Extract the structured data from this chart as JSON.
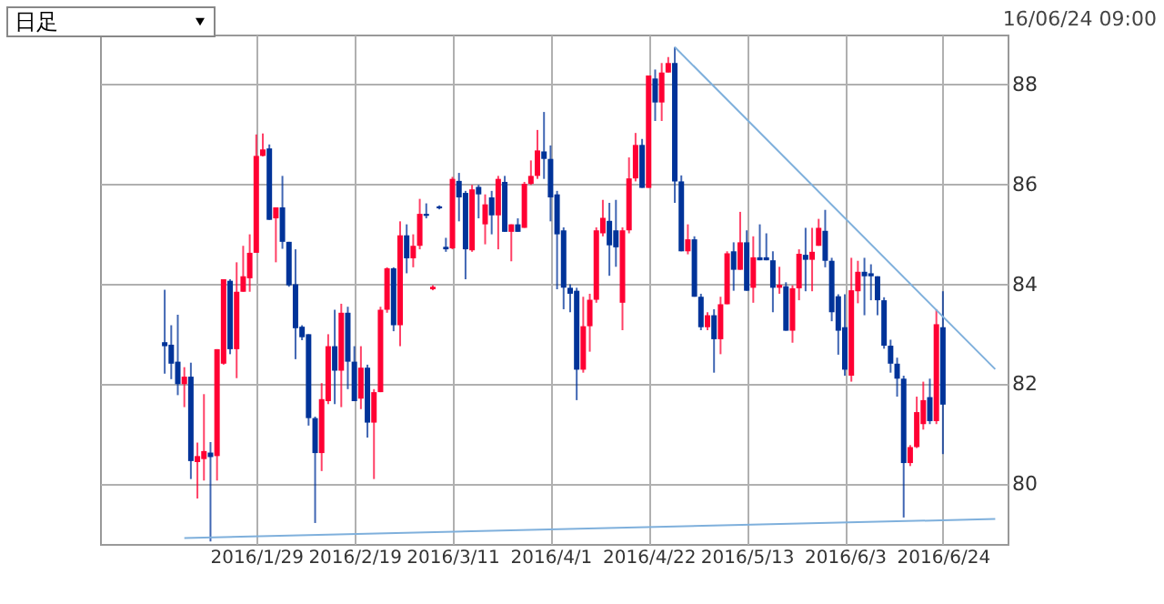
{
  "chart_data": {
    "type": "candlestick",
    "annotations": [
      "日足",
      "16/06/24 09:00"
    ],
    "categories": [
      null,
      null,
      null,
      null,
      null,
      null,
      null,
      null,
      null,
      null,
      null,
      null,
      null,
      null,
      null,
      null,
      null,
      null,
      null,
      null,
      null,
      null,
      "2016/1/29",
      null,
      null,
      null,
      null,
      null,
      null,
      null,
      null,
      null,
      null,
      null,
      null,
      null,
      null,
      "2016/2/19",
      null,
      null,
      null,
      null,
      null,
      null,
      null,
      null,
      null,
      null,
      null,
      null,
      null,
      null,
      "2016/3/11",
      null,
      null,
      null,
      null,
      null,
      null,
      null,
      null,
      null,
      null,
      null,
      null,
      null,
      null,
      "2016/4/1",
      null,
      null,
      null,
      null,
      null,
      null,
      null,
      null,
      null,
      null,
      null,
      null,
      null,
      null,
      "2016/4/22",
      null,
      null,
      null,
      null,
      null,
      null,
      null,
      null,
      null,
      null,
      null,
      null,
      null,
      null,
      "2016/5/13",
      null,
      null,
      null,
      null,
      null,
      null,
      null,
      null,
      null,
      null,
      null,
      null,
      null,
      null,
      "2016/6/3",
      null,
      null,
      null,
      null,
      null,
      null,
      null,
      null,
      null,
      null,
      null,
      null,
      null,
      null,
      "2016/6/24",
      null,
      null,
      null,
      null,
      null,
      null,
      null,
      null
    ],
    "ohlc": [
      null,
      null,
      null,
      null,
      null,
      null,
      null,
      null,
      [
        82.84,
        83.89,
        82.21,
        82.76
      ],
      [
        82.79,
        83.18,
        82.1,
        82.41
      ],
      [
        82.45,
        83.39,
        81.78,
        82.0
      ],
      [
        82.0,
        82.34,
        81.54,
        82.15
      ],
      [
        82.15,
        82.43,
        80.1,
        80.46
      ],
      [
        80.44,
        80.83,
        79.71,
        80.56
      ],
      [
        80.5,
        81.8,
        80.07,
        80.66
      ],
      [
        80.63,
        80.84,
        78.85,
        80.54
      ],
      [
        80.56,
        82.7,
        80.07,
        82.7
      ],
      [
        82.41,
        84.1,
        82.39,
        84.1
      ],
      [
        84.07,
        84.1,
        82.6,
        82.7
      ],
      [
        82.7,
        84.44,
        82.12,
        83.85
      ],
      [
        83.85,
        84.77,
        83.85,
        84.16
      ],
      [
        84.12,
        85.0,
        83.85,
        84.63
      ],
      [
        84.63,
        87.0,
        84.63,
        86.57
      ],
      [
        86.57,
        87.02,
        86.56,
        86.7
      ],
      [
        86.72,
        86.8,
        85.29,
        85.29
      ],
      [
        85.32,
        85.54,
        84.44,
        85.54
      ],
      [
        85.54,
        86.17,
        84.71,
        84.85
      ],
      [
        84.85,
        84.85,
        83.95,
        83.98
      ],
      [
        84.0,
        84.7,
        82.5,
        83.12
      ],
      [
        83.15,
        83.18,
        82.88,
        82.94
      ],
      [
        83.0,
        83.0,
        81.17,
        81.32
      ],
      [
        81.32,
        81.35,
        79.22,
        80.62
      ],
      [
        80.62,
        82.02,
        80.26,
        81.7
      ],
      [
        81.66,
        83.0,
        81.6,
        82.76
      ],
      [
        82.76,
        83.49,
        81.6,
        82.27
      ],
      [
        82.27,
        83.61,
        81.54,
        83.43
      ],
      [
        83.43,
        83.55,
        81.9,
        82.45
      ],
      [
        82.45,
        82.76,
        81.66,
        81.66
      ],
      [
        81.71,
        82.76,
        81.5,
        82.33
      ],
      [
        82.33,
        82.39,
        80.93,
        81.23
      ],
      [
        81.23,
        81.9,
        80.1,
        81.84
      ],
      [
        81.84,
        83.55,
        81.84,
        83.49
      ],
      [
        83.49,
        84.34,
        83.43,
        84.32
      ],
      [
        84.32,
        84.34,
        83.06,
        83.18
      ],
      [
        83.18,
        85.26,
        82.76,
        84.98
      ],
      [
        84.98,
        85.2,
        84.22,
        84.52
      ],
      [
        84.52,
        85.0,
        84.34,
        84.77
      ],
      [
        84.77,
        85.71,
        84.7,
        85.41
      ],
      [
        85.41,
        85.62,
        85.32,
        85.37
      ],
      [
        83.9,
        83.98,
        83.88,
        83.95
      ],
      [
        85.56,
        85.58,
        85.5,
        85.52
      ],
      [
        84.75,
        84.93,
        84.65,
        84.7
      ],
      [
        84.72,
        86.15,
        84.7,
        86.11
      ],
      [
        86.07,
        86.23,
        85.26,
        85.74
      ],
      [
        85.83,
        85.87,
        84.1,
        84.7
      ],
      [
        84.68,
        85.99,
        84.65,
        85.9
      ],
      [
        85.95,
        85.99,
        85.32,
        85.8
      ],
      [
        85.2,
        85.8,
        84.8,
        85.6
      ],
      [
        85.74,
        85.87,
        85.0,
        85.38
      ],
      [
        85.38,
        86.17,
        84.7,
        86.11
      ],
      [
        86.05,
        86.17,
        85.05,
        85.05
      ],
      [
        85.05,
        85.2,
        84.46,
        85.2
      ],
      [
        85.2,
        85.32,
        85.05,
        85.05
      ],
      [
        85.13,
        86.05,
        85.13,
        86.01
      ],
      [
        86.01,
        86.48,
        85.99,
        86.17
      ],
      [
        86.17,
        87.09,
        86.11,
        86.68
      ],
      [
        86.66,
        87.45,
        86.11,
        86.51
      ],
      [
        86.51,
        86.78,
        85.26,
        85.74
      ],
      [
        85.8,
        85.87,
        83.9,
        85.0
      ],
      [
        85.08,
        85.14,
        83.5,
        83.93
      ],
      [
        83.93,
        84.0,
        83.44,
        83.81
      ],
      [
        83.87,
        83.93,
        81.68,
        82.29
      ],
      [
        82.29,
        83.75,
        82.23,
        83.16
      ],
      [
        83.16,
        83.81,
        82.65,
        83.69
      ],
      [
        83.69,
        85.14,
        83.63,
        85.08
      ],
      [
        85.02,
        85.69,
        84.96,
        85.33
      ],
      [
        85.27,
        85.63,
        84.17,
        84.78
      ],
      [
        85.08,
        85.69,
        84.35,
        84.74
      ],
      [
        83.63,
        85.14,
        83.08,
        85.08
      ],
      [
        85.08,
        86.54,
        85.02,
        86.12
      ],
      [
        86.12,
        87.03,
        86.06,
        86.79
      ],
      [
        86.79,
        86.91,
        85.93,
        85.93
      ],
      [
        85.93,
        88.18,
        85.93,
        88.18
      ],
      [
        88.12,
        88.3,
        87.27,
        87.64
      ],
      [
        87.64,
        88.43,
        87.27,
        88.24
      ],
      [
        88.24,
        88.55,
        88.24,
        88.43
      ],
      [
        88.43,
        88.75,
        85.63,
        86.06
      ],
      [
        86.06,
        86.18,
        84.66,
        84.66
      ],
      [
        84.66,
        85.2,
        84.6,
        84.9
      ],
      [
        84.9,
        84.96,
        83.75,
        83.75
      ],
      [
        83.75,
        83.81,
        83.08,
        83.14
      ],
      [
        83.14,
        83.44,
        83.08,
        83.38
      ],
      [
        83.38,
        83.5,
        82.23,
        82.9
      ],
      [
        82.9,
        83.75,
        82.6,
        83.6
      ],
      [
        83.6,
        84.66,
        83.6,
        84.62
      ],
      [
        84.66,
        84.84,
        83.87,
        84.29
      ],
      [
        84.29,
        85.45,
        84.29,
        84.84
      ],
      [
        84.84,
        85.08,
        83.87,
        83.87
      ],
      [
        83.93,
        84.96,
        83.63,
        84.54
      ],
      [
        84.54,
        85.2,
        84.48,
        84.48
      ],
      [
        84.54,
        85.02,
        84.48,
        84.48
      ],
      [
        84.48,
        84.66,
        83.44,
        83.93
      ],
      [
        83.93,
        84.35,
        83.81,
        83.99
      ],
      [
        83.96,
        84.04,
        83.07,
        83.07
      ],
      [
        83.07,
        83.98,
        82.83,
        83.92
      ],
      [
        83.92,
        84.7,
        83.68,
        84.61
      ],
      [
        84.59,
        85.13,
        83.86,
        84.49
      ],
      [
        84.49,
        85.13,
        83.86,
        84.65
      ],
      [
        84.77,
        85.31,
        84.77,
        85.13
      ],
      [
        85.07,
        85.49,
        84.34,
        84.47
      ],
      [
        84.47,
        84.53,
        83.26,
        83.44
      ],
      [
        83.76,
        83.8,
        82.59,
        83.07
      ],
      [
        83.14,
        83.8,
        82.17,
        82.29
      ],
      [
        82.17,
        84.53,
        82.05,
        83.88
      ],
      [
        83.86,
        84.47,
        83.62,
        84.25
      ],
      [
        84.25,
        84.53,
        83.38,
        84.16
      ],
      [
        84.22,
        84.4,
        83.68,
        84.16
      ],
      [
        84.16,
        84.16,
        83.38,
        83.68
      ],
      [
        83.68,
        83.74,
        82.71,
        82.77
      ],
      [
        82.77,
        82.89,
        82.23,
        82.41
      ],
      [
        82.41,
        82.53,
        81.75,
        82.11
      ],
      [
        82.11,
        82.17,
        79.33,
        80.42
      ],
      [
        80.42,
        80.78,
        80.36,
        80.74
      ],
      [
        80.74,
        81.75,
        80.72,
        81.44
      ],
      [
        81.2,
        82.05,
        81.09,
        81.68
      ],
      [
        81.74,
        82.11,
        81.2,
        81.26
      ],
      [
        81.26,
        83.5,
        81.2,
        83.2
      ],
      [
        83.14,
        83.86,
        80.6,
        81.59
      ],
      null,
      null,
      null,
      null,
      null,
      null,
      null,
      null
    ],
    "colors": [
      null,
      null,
      null,
      null,
      null,
      null,
      null,
      null,
      "#003399",
      "#003399",
      "#003399",
      "#ff0033",
      "#003399",
      "#ff0033",
      "#ff0033",
      "#003399",
      "#ff0033",
      "#ff0033",
      "#003399",
      "#ff0033",
      "#ff0033",
      "#ff0033",
      "#ff0033",
      "#ff0033",
      "#003399",
      "#ff0033",
      "#003399",
      "#003399",
      "#003399",
      "#003399",
      "#003399",
      "#003399",
      "#ff0033",
      "#ff0033",
      "#003399",
      "#ff0033",
      "#003399",
      "#003399",
      "#ff0033",
      "#003399",
      "#ff0033",
      "#ff0033",
      "#ff0033",
      "#003399",
      "#ff0033",
      "#003399",
      "#ff0033",
      "#ff0033",
      "#003399",
      "#ff0033",
      "#003399",
      "#003399",
      "#ff0033",
      "#003399",
      "#003399",
      "#ff0033",
      "#003399",
      "#ff0033",
      "#003399",
      "#ff0033",
      "#003399",
      "#ff0033",
      "#003399",
      "#ff0033",
      "#ff0033",
      "#ff0033",
      "#003399",
      "#003399",
      "#003399",
      "#003399",
      "#003399",
      "#003399",
      "#ff0033",
      "#ff0033",
      "#ff0033",
      "#ff0033",
      "#003399",
      "#003399",
      "#ff0033",
      "#ff0033",
      "#ff0033",
      "#003399",
      "#ff0033",
      "#003399",
      "#ff0033",
      "#ff0033",
      "#003399",
      "#003399",
      "#ff0033",
      "#003399",
      "#003399",
      "#ff0033",
      "#003399",
      "#ff0033",
      "#ff0033",
      "#003399",
      "#ff0033",
      "#003399",
      "#ff0033",
      "#003399",
      "#003399",
      "#003399",
      "#ff0033",
      "#003399",
      "#ff0033",
      "#ff0033",
      "#003399",
      "#ff0033",
      "#ff0033",
      "#003399",
      "#003399",
      "#003399",
      "#003399",
      "#ff0033",
      "#ff0033",
      "#003399",
      "#003399",
      "#003399",
      "#003399",
      "#003399",
      "#003399",
      "#003399",
      "#ff0033",
      "#ff0033",
      "#ff0033",
      "#003399",
      "#ff0033",
      "#003399",
      null,
      null,
      null,
      null,
      null,
      null,
      null,
      null
    ],
    "series": [
      {
        "type": "line",
        "color": "#7fb0dc",
        "values": [
          null,
          null,
          null,
          null,
          null,
          null,
          null,
          null,
          null,
          null,
          null,
          78.92,
          null,
          null,
          null,
          null,
          null,
          null,
          null,
          null,
          null,
          null,
          null,
          null,
          null,
          null,
          null,
          null,
          null,
          null,
          null,
          null,
          null,
          null,
          null,
          null,
          null,
          null,
          null,
          null,
          null,
          null,
          null,
          null,
          null,
          null,
          null,
          null,
          null,
          null,
          null,
          null,
          null,
          null,
          null,
          null,
          null,
          null,
          null,
          null,
          null,
          null,
          null,
          null,
          null,
          null,
          null,
          null,
          null,
          null,
          null,
          null,
          null,
          null,
          null,
          null,
          null,
          null,
          null,
          null,
          null,
          null,
          null,
          null,
          null,
          null,
          null,
          null,
          null,
          null,
          null,
          null,
          null,
          null,
          null,
          null,
          null,
          null,
          null,
          null,
          null,
          null,
          null,
          null,
          null,
          null,
          null,
          null,
          null,
          null,
          null,
          null,
          null,
          null,
          null,
          null,
          null,
          null,
          null,
          null,
          null,
          null,
          null,
          null,
          null,
          null,
          null,
          null,
          null,
          null,
          null,
          null,
          null,
          null,
          null,
          79.3
        ]
      },
      {
        "type": "line",
        "color": "#7fb0dc",
        "values": [
          null,
          null,
          null,
          null,
          null,
          null,
          null,
          null,
          null,
          null,
          null,
          null,
          null,
          null,
          null,
          null,
          null,
          null,
          null,
          null,
          null,
          null,
          null,
          null,
          null,
          null,
          null,
          null,
          null,
          null,
          null,
          null,
          null,
          null,
          null,
          null,
          null,
          null,
          null,
          null,
          null,
          null,
          null,
          null,
          null,
          null,
          null,
          null,
          null,
          null,
          null,
          null,
          null,
          null,
          null,
          null,
          null,
          null,
          null,
          null,
          null,
          null,
          null,
          null,
          null,
          null,
          null,
          null,
          null,
          null,
          null,
          null,
          null,
          null,
          null,
          null,
          null,
          null,
          null,
          null,
          null,
          null,
          null,
          null,
          null,
          null,
          88.75,
          null,
          null,
          null,
          null,
          null,
          null,
          null,
          null,
          null,
          null,
          null,
          null,
          null,
          null,
          null,
          null,
          null,
          null,
          null,
          null,
          null,
          null,
          null,
          null,
          null,
          null,
          null,
          null,
          null,
          null,
          null,
          null,
          null,
          null,
          null,
          null,
          null,
          null,
          null,
          null,
          null,
          null,
          null,
          null,
          null,
          null,
          null,
          null,
          82.3
        ]
      }
    ],
    "ylim": [
      78.8,
      89.0
    ],
    "yticks": [
      80,
      82,
      84,
      86,
      88
    ],
    "grid": true,
    "marker": "none",
    "line_style": "solid"
  }
}
